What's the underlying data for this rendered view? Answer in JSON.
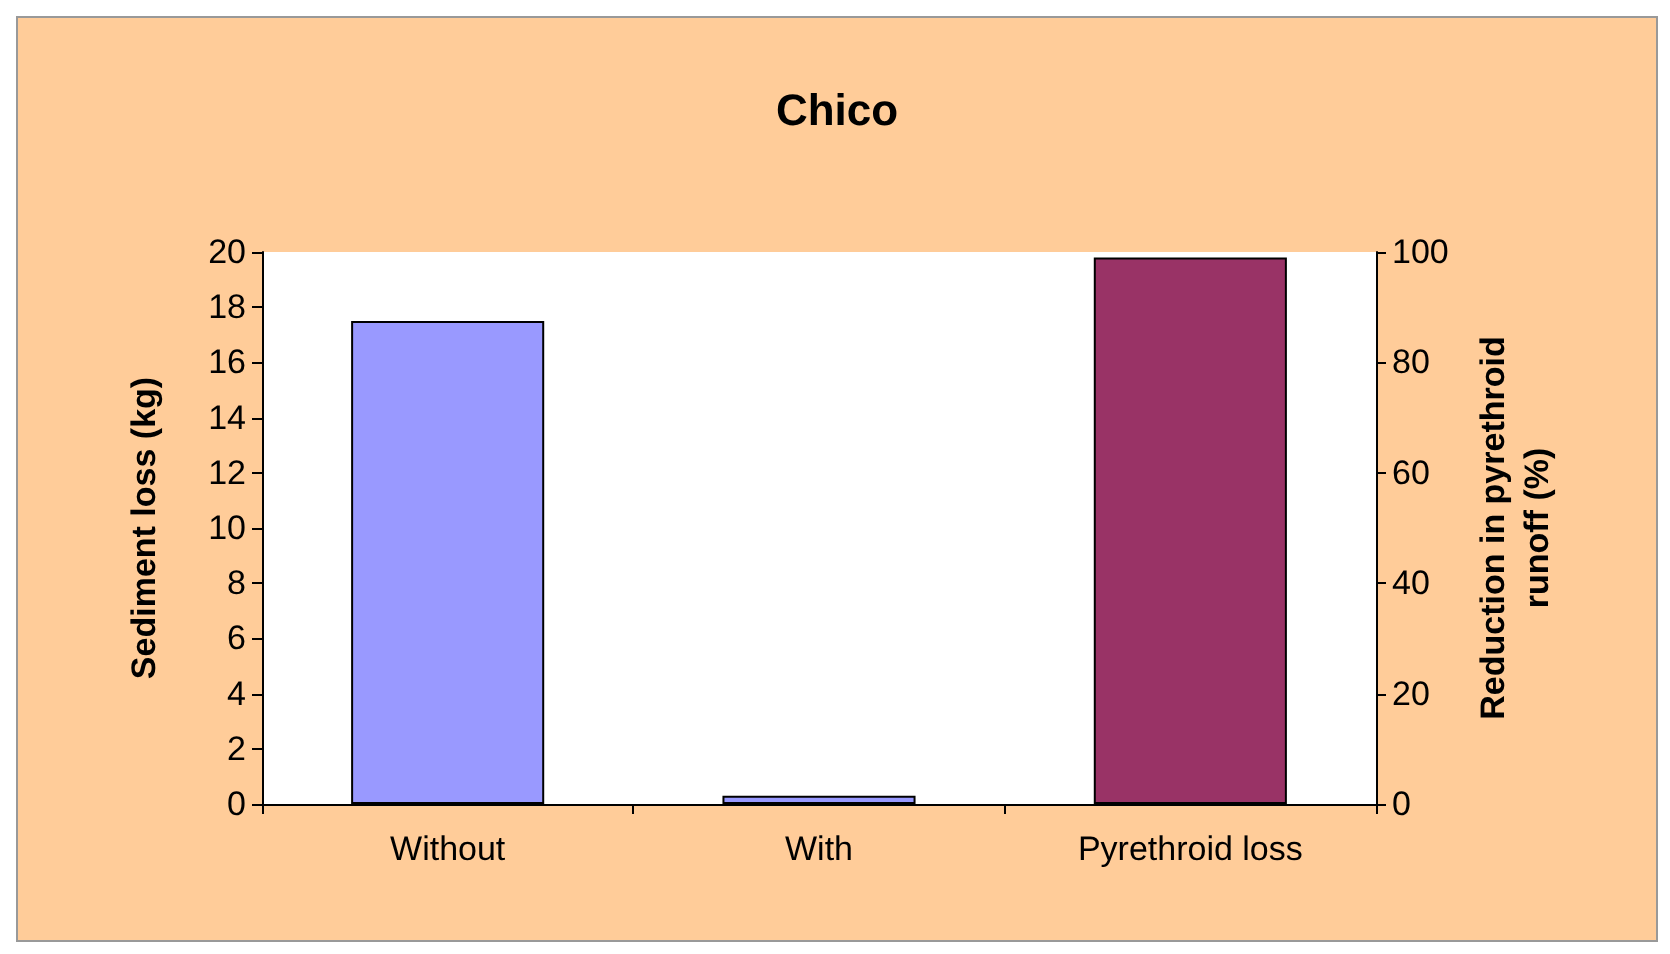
{
  "chart_data": {
    "type": "bar",
    "title": "Chico",
    "categories": [
      "Without",
      "With",
      "Pyrethroid loss"
    ],
    "ylabel": "Sediment loss (kg)",
    "y2label": "Reduction in pyrethroid\nrunoff (%)",
    "series": [
      {
        "color": "#9999ff",
        "values": [
          17.5,
          0.3,
          null
        ]
      },
      {
        "color": "#993366",
        "values": [
          null,
          null,
          99
        ],
        "axis": "y2"
      }
    ],
    "ylim": [
      0,
      20
    ],
    "yticks": [
      0,
      2,
      4,
      6,
      8,
      10,
      12,
      14,
      16,
      18,
      20
    ],
    "y2lim": [
      0,
      100
    ],
    "y2ticks": [
      0,
      20,
      40,
      60,
      80,
      100
    ],
    "grid": false
  }
}
